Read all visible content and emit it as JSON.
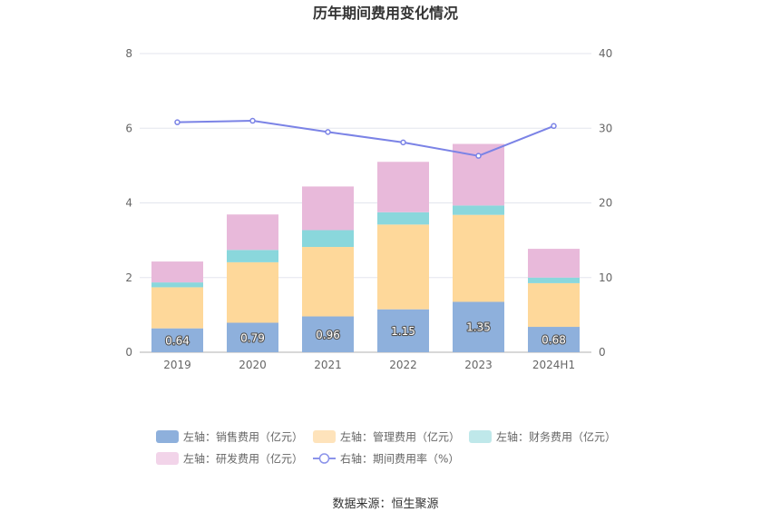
{
  "chart_data": {
    "type": "bar",
    "title": "历年期间费用变化情况",
    "categories": [
      "2019",
      "2020",
      "2021",
      "2022",
      "2023",
      "2024H1"
    ],
    "stacked": true,
    "y_left": {
      "lim": [
        0,
        8
      ],
      "ticks": [
        "0",
        "2",
        "4",
        "6",
        "8"
      ]
    },
    "y_right": {
      "lim": [
        0,
        40
      ],
      "ticks": [
        "0",
        "10",
        "20",
        "30",
        "40"
      ]
    },
    "grid": true,
    "legend_position": "bottom",
    "series": [
      {
        "name": "左轴：销售费用（亿元）",
        "axis": "left",
        "kind": "bar",
        "color": "#8eb0dc",
        "values": [
          0.64,
          0.79,
          0.96,
          1.15,
          1.35,
          0.68
        ],
        "labels": [
          "0.64",
          "0.79",
          "0.96",
          "1.15",
          "1.35",
          "0.68"
        ]
      },
      {
        "name": "左轴：管理费用（亿元）",
        "axis": "left",
        "kind": "bar",
        "color": "#fed89a",
        "values": [
          1.1,
          1.62,
          1.86,
          2.27,
          2.33,
          1.17
        ]
      },
      {
        "name": "左轴：财务费用（亿元）",
        "axis": "left",
        "kind": "bar",
        "color": "#8ad7dc",
        "values": [
          0.13,
          0.33,
          0.45,
          0.33,
          0.25,
          0.15
        ]
      },
      {
        "name": "左轴：研发费用（亿元）",
        "axis": "left",
        "kind": "bar",
        "color": "#e8b9da",
        "values": [
          0.56,
          0.95,
          1.17,
          1.35,
          1.65,
          0.77
        ]
      },
      {
        "name": "右轴：期间费用率（%）",
        "axis": "right",
        "kind": "line",
        "color": "#7b83e6",
        "values": [
          30.8,
          31.0,
          29.5,
          28.1,
          26.3,
          30.3
        ]
      }
    ],
    "legend_swatch_colors": [
      "#8eb0dc",
      "#fee3bb",
      "#bfe8ea",
      "#f2d4e9",
      "#8b93ea"
    ]
  },
  "source_label": "数据来源：恒生聚源"
}
